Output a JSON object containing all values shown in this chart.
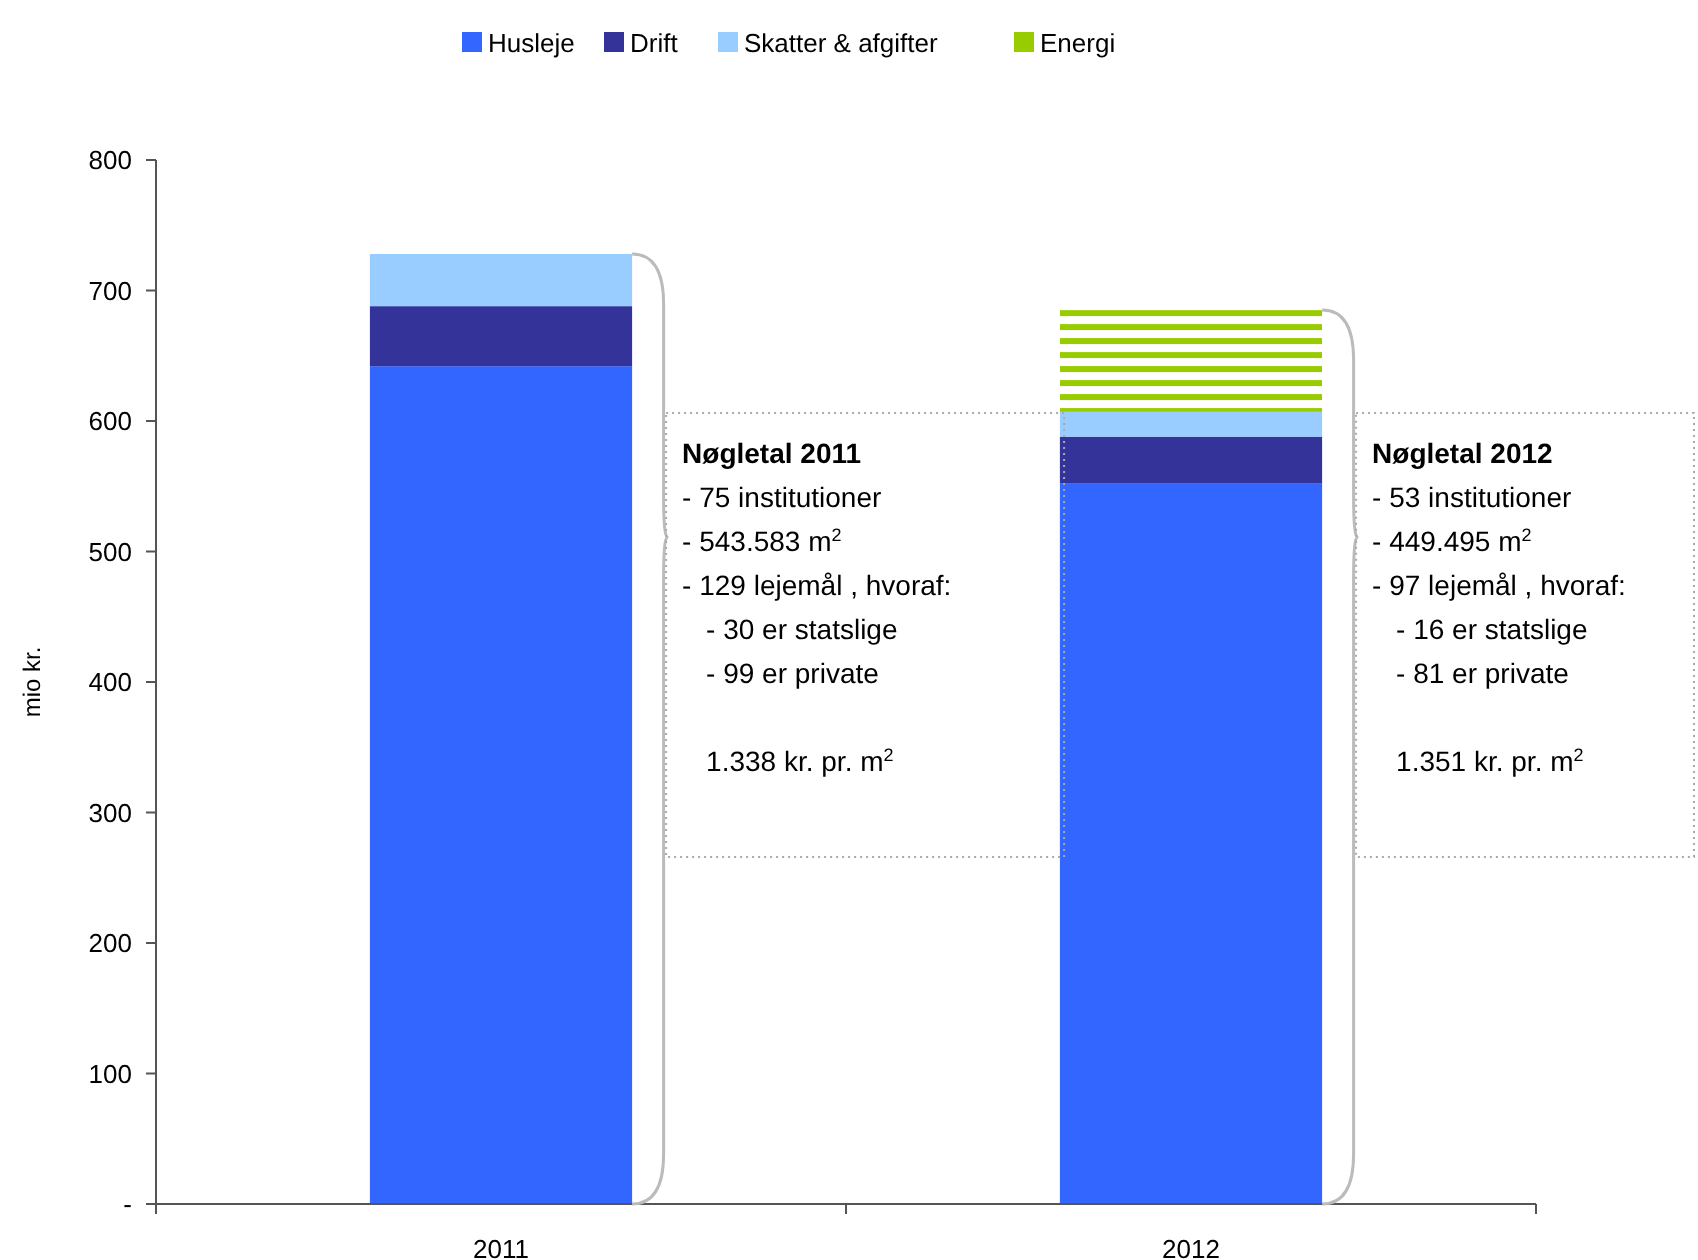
{
  "chart_data": {
    "type": "bar",
    "stacked": true,
    "categories": [
      "2011",
      "2012"
    ],
    "series": [
      {
        "name": "Husleje",
        "color": "#3366ff",
        "values": [
          642,
          552
        ]
      },
      {
        "name": "Drift",
        "color": "#333399",
        "values": [
          46,
          36
        ]
      },
      {
        "name": "Skatter & afgifter",
        "color": "#99ccff",
        "values": [
          40,
          19
        ]
      },
      {
        "name": "Energi",
        "color": "#99cc00",
        "values": [
          null,
          78
        ]
      }
    ],
    "ylabel": "mio kr.",
    "ylim": [
      0,
      800
    ],
    "yticks": [
      {
        "value": 0,
        "label": "-"
      },
      100,
      200,
      300,
      400,
      500,
      600,
      700,
      800
    ],
    "legend": "top",
    "grid": false,
    "annotations": [
      "Nøgletal 2011",
      "- 75 institutioner",
      "- 543.583 m$^{2}$",
      "- 129 lejemål , hvoraf:",
      "- 30 er statslige",
      "- 99 er private",
      "1.338 kr. pr. m$^{2}$",
      "Nøgletal 2012",
      "- 53 institutioner",
      "- 449.495 m$^{2}$",
      "- 97 lejemål , hvoraf:",
      "- 16 er statslige",
      "- 81 er private",
      "1.351 kr. pr. m$^{2}$"
    ]
  }
}
